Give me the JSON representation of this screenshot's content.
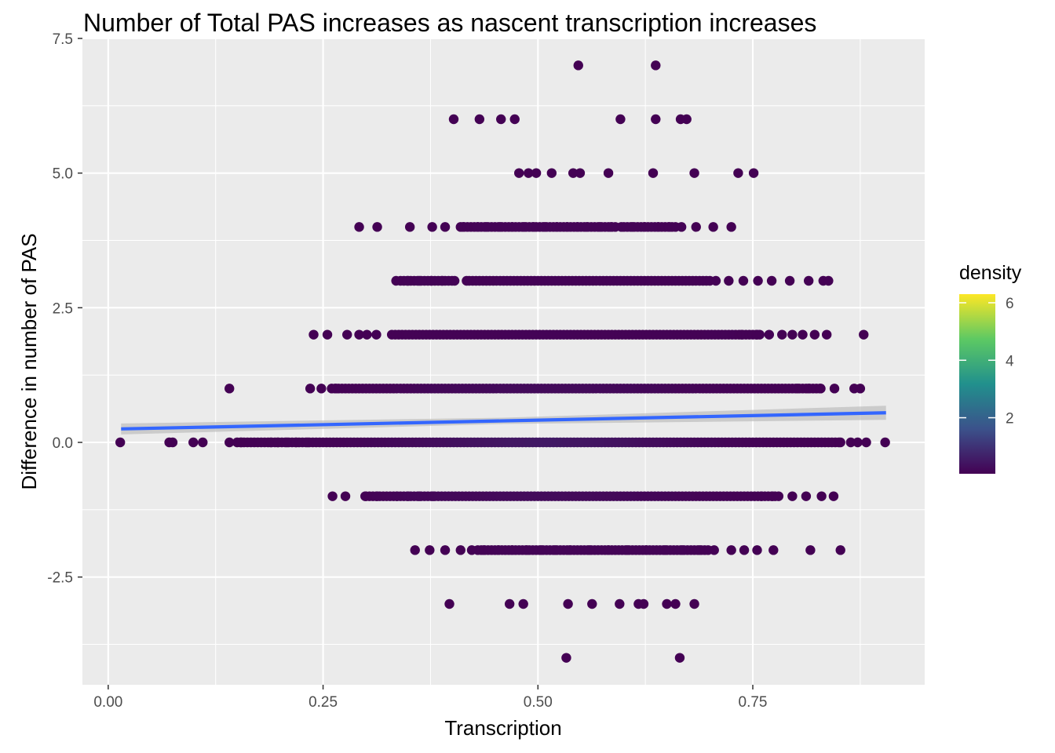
{
  "chart_data": {
    "type": "scatter",
    "title": "Number of Total PAS increases as nascent transcription increases",
    "xlabel": "Transcription",
    "ylabel": "Difference in number of PAS",
    "xlim": [
      -0.03,
      0.95
    ],
    "ylim": [
      -4.5,
      7.5
    ],
    "x_ticks": [
      0.0,
      0.25,
      0.5,
      0.75
    ],
    "x_tick_labels": [
      "0.00",
      "0.25",
      "0.50",
      "0.75"
    ],
    "y_ticks": [
      -2.5,
      0.0,
      2.5,
      5.0,
      7.5
    ],
    "y_tick_labels": [
      "-2.5",
      "0.0",
      "2.5",
      "5.0",
      "7.5"
    ],
    "grid": true,
    "panel_background": "#ebebeb",
    "legend": {
      "title": "density",
      "position": "right",
      "ticks": [
        2,
        4,
        6
      ],
      "tick_labels": [
        "2",
        "4",
        "6"
      ],
      "range": [
        0.05,
        6.3
      ],
      "colors": [
        "#440154",
        "#3b528b",
        "#21908d",
        "#5dc963",
        "#fde725"
      ]
    },
    "trend_line": {
      "x": [
        0.015,
        0.905
      ],
      "y": [
        0.25,
        0.55
      ],
      "color": "#3366ff",
      "ci_color": "#bdbdbd"
    },
    "point_rows": [
      {
        "y": 7,
        "x": [
          0.547,
          0.637
        ]
      },
      {
        "y": 6,
        "x": [
          0.402,
          0.432,
          0.457,
          0.473,
          0.596,
          0.637,
          0.666,
          0.673
        ]
      },
      {
        "y": 5,
        "x": [
          0.478,
          0.489,
          0.498,
          0.516,
          0.541,
          0.549,
          0.582,
          0.634,
          0.682,
          0.733,
          0.751
        ]
      },
      {
        "y": 4,
        "x": [
          0.292,
          0.313,
          0.351,
          0.377,
          0.392,
          0.413,
          0.43,
          0.44,
          0.456,
          0.47,
          0.484,
          0.495,
          0.508,
          0.522,
          0.534,
          0.546,
          0.557,
          0.572,
          0.585,
          0.597,
          0.61,
          0.624,
          0.64,
          0.653,
          0.667,
          0.684,
          0.704,
          0.725
        ],
        "dense": [
          [
            0.41,
            0.59,
            3
          ],
          [
            0.6,
            0.66,
            2
          ]
        ]
      },
      {
        "y": 3,
        "x": [
          0.335,
          0.349,
          0.362,
          0.376,
          0.389,
          0.403,
          0.417,
          0.707,
          0.722,
          0.739,
          0.756,
          0.772,
          0.793,
          0.815,
          0.832,
          0.838
        ],
        "dense": [
          [
            0.34,
            0.4,
            3
          ],
          [
            0.42,
            0.7,
            3
          ]
        ]
      },
      {
        "y": 2,
        "x": [
          0.239,
          0.255,
          0.278,
          0.292,
          0.301,
          0.312,
          0.737,
          0.755,
          0.769,
          0.784,
          0.796,
          0.808,
          0.822,
          0.836,
          0.879
        ],
        "dense": [
          [
            0.33,
            0.76,
            4
          ]
        ]
      },
      {
        "y": 1,
        "x": [
          0.141,
          0.235,
          0.248,
          0.265,
          0.802,
          0.815,
          0.829,
          0.845,
          0.868,
          0.875
        ],
        "dense": [
          [
            0.26,
            0.83,
            5
          ]
        ]
      },
      {
        "y": 0,
        "x": [
          0.014,
          0.071,
          0.075,
          0.099,
          0.11,
          0.141,
          0.155,
          0.189,
          0.197,
          0.208,
          0.219,
          0.232,
          0.852,
          0.864,
          0.872,
          0.882,
          0.904
        ],
        "dense": [
          [
            0.15,
            0.85,
            6
          ]
        ]
      },
      {
        "y": -1,
        "x": [
          0.261,
          0.276,
          0.299,
          0.313,
          0.336,
          0.349,
          0.362,
          0.378,
          0.76,
          0.773,
          0.796,
          0.812,
          0.83,
          0.844
        ],
        "dense": [
          [
            0.3,
            0.78,
            4
          ]
        ]
      },
      {
        "y": -2,
        "x": [
          0.357,
          0.374,
          0.392,
          0.41,
          0.423,
          0.437,
          0.454,
          0.47,
          0.487,
          0.504,
          0.52,
          0.537,
          0.56,
          0.582,
          0.604,
          0.626,
          0.648,
          0.668,
          0.688,
          0.705,
          0.725,
          0.74,
          0.755,
          0.774,
          0.817,
          0.852
        ],
        "dense": [
          [
            0.43,
            0.7,
            3
          ]
        ]
      },
      {
        "y": -3,
        "x": [
          0.397,
          0.467,
          0.483,
          0.535,
          0.563,
          0.595,
          0.617,
          0.623,
          0.65,
          0.66,
          0.682
        ]
      },
      {
        "y": -4,
        "x": [
          0.533,
          0.665
        ]
      }
    ]
  }
}
